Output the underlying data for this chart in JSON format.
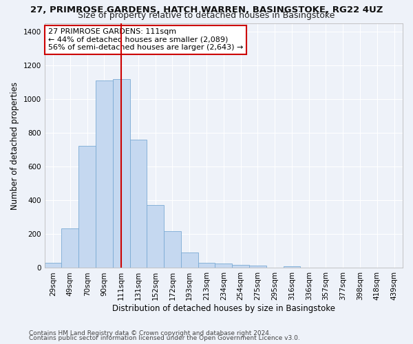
{
  "title1": "27, PRIMROSE GARDENS, HATCH WARREN, BASINGSTOKE, RG22 4UZ",
  "title2": "Size of property relative to detached houses in Basingstoke",
  "xlabel": "Distribution of detached houses by size in Basingstoke",
  "ylabel": "Number of detached properties",
  "categories": [
    "29sqm",
    "49sqm",
    "70sqm",
    "90sqm",
    "111sqm",
    "131sqm",
    "152sqm",
    "172sqm",
    "193sqm",
    "213sqm",
    "234sqm",
    "254sqm",
    "275sqm",
    "295sqm",
    "316sqm",
    "336sqm",
    "357sqm",
    "377sqm",
    "398sqm",
    "418sqm",
    "439sqm"
  ],
  "values": [
    30,
    235,
    725,
    1110,
    1120,
    760,
    375,
    220,
    90,
    30,
    25,
    20,
    15,
    0,
    10,
    0,
    0,
    0,
    0,
    0,
    0
  ],
  "bar_color": "#c5d8f0",
  "bar_edge_color": "#7aaad4",
  "vline_x_idx": 4,
  "vline_color": "#cc0000",
  "annotation_line1": "27 PRIMROSE GARDENS: 111sqm",
  "annotation_line2": "← 44% of detached houses are smaller (2,089)",
  "annotation_line3": "56% of semi-detached houses are larger (2,643) →",
  "annotation_box_color": "#ffffff",
  "annotation_box_edge": "#cc0000",
  "ylim": [
    0,
    1450
  ],
  "yticks": [
    0,
    200,
    400,
    600,
    800,
    1000,
    1200,
    1400
  ],
  "footer1": "Contains HM Land Registry data © Crown copyright and database right 2024.",
  "footer2": "Contains public sector information licensed under the Open Government Licence v3.0.",
  "background_color": "#eef2f9",
  "grid_color": "#ffffff",
  "title1_fontsize": 9.5,
  "title2_fontsize": 9,
  "axis_label_fontsize": 8.5,
  "tick_fontsize": 7.5,
  "annotation_fontsize": 8,
  "footer_fontsize": 6.5
}
